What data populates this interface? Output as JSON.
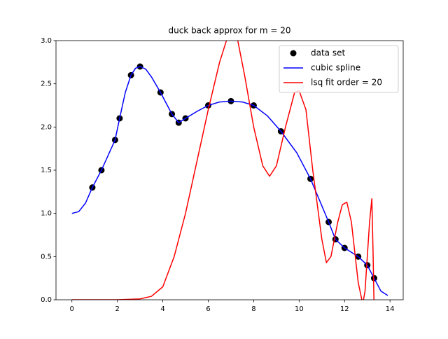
{
  "chart_data": {
    "type": "line",
    "title": "duck back approx for m = 20",
    "xlim": [
      -0.7,
      14.58
    ],
    "ylim": [
      0,
      3
    ],
    "xticks": [
      0,
      2,
      4,
      6,
      8,
      10,
      12,
      14
    ],
    "yticks": [
      {
        "value": 0,
        "label": "0.0"
      },
      0.5,
      {
        "value": 1,
        "label": "1.0"
      },
      1.5,
      {
        "value": 2,
        "label": "2.0"
      },
      2.5,
      {
        "value": 3,
        "label": "3.0"
      }
    ],
    "legend": "upper right",
    "series": [
      {
        "name": "data set",
        "color": "#000000",
        "kind": "scatter",
        "x": [
          0.9,
          1.3,
          1.9,
          2.1,
          2.6,
          3.0,
          3.9,
          4.4,
          4.7,
          5.0,
          6.0,
          7.0,
          8.0,
          9.2,
          10.5,
          11.3,
          11.6,
          12.0,
          12.6,
          13.0,
          13.3
        ],
        "values": [
          1.3,
          1.5,
          1.85,
          2.1,
          2.6,
          2.7,
          2.4,
          2.15,
          2.05,
          2.1,
          2.25,
          2.3,
          2.25,
          1.95,
          1.4,
          0.9,
          0.7,
          0.6,
          0.5,
          0.4,
          0.25
        ]
      },
      {
        "name": "cubic spline",
        "color": "#0000ff",
        "kind": "line",
        "x": [
          0,
          0.3,
          0.6,
          0.9,
          1.3,
          1.9,
          2.1,
          2.35,
          2.6,
          2.8,
          3.0,
          3.25,
          3.5,
          3.9,
          4.4,
          4.7,
          5.0,
          5.5,
          6.0,
          6.5,
          7.0,
          7.5,
          8.0,
          8.6,
          9.2,
          9.9,
          10.5,
          11.3,
          11.6,
          12.0,
          12.6,
          13.0,
          13.3,
          13.6,
          13.9
        ],
        "values": [
          1.0,
          1.02,
          1.12,
          1.3,
          1.5,
          1.85,
          2.1,
          2.4,
          2.6,
          2.68,
          2.7,
          2.67,
          2.58,
          2.4,
          2.15,
          2.05,
          2.1,
          2.18,
          2.25,
          2.29,
          2.3,
          2.29,
          2.25,
          2.13,
          1.95,
          1.7,
          1.4,
          0.9,
          0.7,
          0.6,
          0.5,
          0.4,
          0.25,
          0.1,
          0.05
        ]
      },
      {
        "name": "lsq fit order = 20",
        "color": "#ff0000",
        "kind": "line",
        "x": [
          0,
          1,
          2,
          3,
          3.5,
          4,
          4.5,
          5,
          5.5,
          6,
          6.5,
          6.8,
          7.0,
          7.3,
          7.6,
          8.0,
          8.4,
          8.7,
          9.0,
          9.4,
          9.8,
          10.0,
          10.3,
          10.6,
          11.0,
          11.2,
          11.4,
          11.7,
          11.9,
          12.1,
          12.3,
          12.6,
          12.8,
          12.9,
          13.1,
          13.2,
          13.25,
          13.3
        ],
        "values": [
          0,
          0,
          0,
          0.01,
          0.04,
          0.15,
          0.5,
          1.0,
          1.6,
          2.2,
          2.75,
          3.0,
          3.1,
          3.0,
          2.6,
          2.0,
          1.55,
          1.43,
          1.55,
          2.0,
          2.4,
          2.42,
          2.2,
          1.5,
          0.7,
          0.43,
          0.5,
          0.9,
          1.1,
          1.13,
          0.9,
          0.2,
          -0.05,
          0.1,
          0.9,
          1.17,
          0.6,
          -0.1
        ]
      }
    ]
  }
}
